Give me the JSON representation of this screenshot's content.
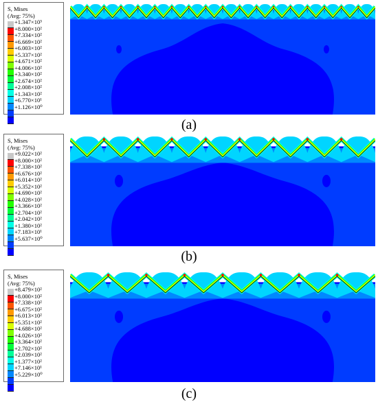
{
  "legend_colors": [
    "#c8c8c8",
    "#ff0000",
    "#ff5500",
    "#ff9900",
    "#ffcc00",
    "#d9ff00",
    "#7fff00",
    "#22ff00",
    "#00ff3a",
    "#00ff99",
    "#00ffe6",
    "#00d5ff",
    "#0088ff",
    "#003cff",
    "#0000ff"
  ],
  "field_colors": {
    "base": "#0000ff",
    "l1": "#003cff",
    "l2": "#0088ff",
    "l3": "#00d5ff",
    "l4": "#00ffe6",
    "l5": "#22ff00",
    "l6": "#d9ff00",
    "l7": "#ff0000"
  },
  "panels": [
    {
      "caption": "(a)",
      "legend_title": "S, Mises",
      "legend_sub": "(Avg: 75%)",
      "legend_values": [
        "+1.347×10³",
        "+8.000×10²",
        "+7.334×10²",
        "+6.669×10²",
        "+6.003×10²",
        "+5.337×10²",
        "+4.671×10²",
        "+4.006×10²",
        "+3.340×10²",
        "+2.674×10²",
        "+2.008×10²",
        "+1.343×10²",
        "+6.770×10¹",
        "+1.126×10⁰"
      ],
      "teeth": 18
    },
    {
      "caption": "(b)",
      "legend_title": "S, Mises",
      "legend_sub": "(Avg: 75%)",
      "legend_values": [
        "+9.022×10²",
        "+8.000×10²",
        "+7.338×10²",
        "+6.676×10²",
        "+6.014×10²",
        "+5.352×10²",
        "+4.690×10²",
        "+4.028×10²",
        "+3.366×10²",
        "+2.704×10²",
        "+2.042×10²",
        "+1.380×10²",
        "+7.183×10¹",
        "+5.637×10⁰"
      ],
      "teeth": 9
    },
    {
      "caption": "(c)",
      "legend_title": "S, Mises",
      "legend_sub": "(Avg: 75%)",
      "legend_values": [
        "+8.479×10²",
        "+8.000×10²",
        "+7.338×10²",
        "+6.675×10²",
        "+6.013×10²",
        "+5.351×10²",
        "+4.688×10²",
        "+4.026×10²",
        "+3.364×10²",
        "+2.702×10²",
        "+2.039×10²",
        "+1.377×10²",
        "+7.146×10¹",
        "+5.229×10⁰"
      ],
      "teeth": 8
    }
  ]
}
